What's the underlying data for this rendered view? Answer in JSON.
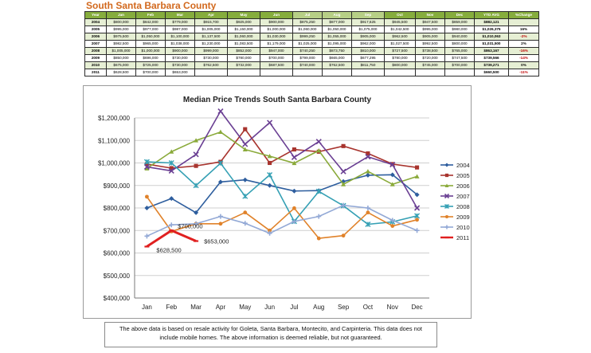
{
  "page": {
    "title": "South Santa Barbara County",
    "note_line1": "The above data is based on resale activity for Goleta, Santa Barbara, Montecito, and Carpinteria.  This data does not",
    "note_line2": "include mobile homes.  The above information is deemed reliable, but not guaranteed."
  },
  "table": {
    "headers": [
      "Year",
      "Jan",
      "Feb",
      "Mar",
      "Apr",
      "May",
      "Jun",
      "Jul",
      "Aug",
      "Sep",
      "Oct",
      "Nov",
      "Dec",
      "YTD AVG",
      "%Change"
    ],
    "highlight_headers": [
      7,
      8,
      9
    ],
    "rows": [
      [
        "2004",
        "$800,000",
        "$842,000",
        "$779,000",
        "$915,700",
        "$925,000",
        "$900,000",
        "$875,250",
        "$877,000",
        "$917,625",
        "$945,500",
        "$947,500",
        "$859,000",
        "$882,121",
        ""
      ],
      [
        "2005",
        "$995,000",
        "$977,000",
        "$987,000",
        "$1,005,000",
        "$1,150,000",
        "$1,000,000",
        "$1,060,000",
        "$1,050,000",
        "$1,075,000",
        "$1,042,500",
        "$995,000",
        "$980,000",
        "$1,026,375",
        "16%"
      ],
      [
        "2006",
        "$975,500",
        "$1,050,000",
        "$1,100,000",
        "$1,137,500",
        "$1,060,000",
        "$1,030,000",
        "$999,250",
        "$1,055,000",
        "$905,000",
        "$962,500",
        "$905,000",
        "$940,000",
        "$1,010,063",
        "-2%"
      ],
      [
        "2007",
        "$982,500",
        "$965,000",
        "$1,038,000",
        "$1,230,000",
        "$1,083,500",
        "$1,179,000",
        "$1,025,000",
        "$1,095,000",
        "$962,000",
        "$1,027,500",
        "$992,500",
        "$800,000",
        "$1,031,500",
        "2%"
      ],
      [
        "2008",
        "$1,005,000",
        "$1,000,000",
        "$900,000",
        "$999,000",
        "$852,000",
        "$947,000",
        "$740,250",
        "$873,750",
        "$810,000",
        "$727,500",
        "$738,500",
        "$765,000",
        "$863,167",
        "-16%"
      ],
      [
        "2009",
        "$850,000",
        "$696,000",
        "$730,000",
        "$730,000",
        "$780,000",
        "$700,000",
        "$799,000",
        "$665,000",
        "$677,295",
        "$780,000",
        "$720,000",
        "$747,500",
        "$739,566",
        "-14%"
      ],
      [
        "2010",
        "$675,000",
        "$725,000",
        "$730,000",
        "$762,500",
        "$732,000",
        "$687,500",
        "$740,000",
        "$762,500",
        "$811,750",
        "$800,000",
        "$745,000",
        "$700,000",
        "$739,271",
        "0%"
      ],
      [
        "2011",
        "$628,500",
        "$700,000",
        "$653,000",
        "",
        "",
        "",
        "",
        "",
        "",
        "",
        "",
        "",
        "$660,500",
        "-11%"
      ]
    ]
  },
  "chart_data": {
    "type": "line",
    "title": "Median Price Trends South Santa Barbara County",
    "categories": [
      "Jan",
      "Feb",
      "Mar",
      "Apr",
      "May",
      "Jun",
      "Jul",
      "Aug",
      "Sep",
      "Oct",
      "Nov",
      "Dec"
    ],
    "ylim": [
      400000,
      1200000
    ],
    "yticks": [
      "$400,000",
      "$500,000",
      "$600,000",
      "$700,000",
      "$800,000",
      "$900,000",
      "$1,000,000",
      "$1,100,000",
      "$1,200,000"
    ],
    "grid": true,
    "legend": "right",
    "series": [
      {
        "name": "2004",
        "color": "#2e5e9e",
        "marker": "diamond",
        "values": [
          800000,
          842000,
          779000,
          915700,
          925000,
          900000,
          875250,
          877000,
          917625,
          945500,
          947500,
          859000
        ]
      },
      {
        "name": "2005",
        "color": "#a8342e",
        "marker": "square",
        "values": [
          995000,
          977000,
          987000,
          1005000,
          1150000,
          1000000,
          1060000,
          1050000,
          1075000,
          1042500,
          995000,
          980000
        ]
      },
      {
        "name": "2006",
        "color": "#8aaa3a",
        "marker": "triangle",
        "values": [
          975500,
          1050000,
          1100000,
          1137500,
          1060000,
          1030000,
          999250,
          1055000,
          905000,
          962500,
          905000,
          940000
        ]
      },
      {
        "name": "2007",
        "color": "#6a3f93",
        "marker": "x",
        "values": [
          982500,
          965000,
          1038000,
          1230000,
          1083500,
          1179000,
          1025000,
          1095000,
          962000,
          1027500,
          992500,
          800000
        ]
      },
      {
        "name": "2008",
        "color": "#35a0b4",
        "marker": "star",
        "values": [
          1005000,
          1000000,
          900000,
          999000,
          852000,
          947000,
          740250,
          873750,
          810000,
          727500,
          738500,
          765000
        ]
      },
      {
        "name": "2009",
        "color": "#e0822a",
        "marker": "circle",
        "values": [
          850000,
          696000,
          730000,
          730000,
          780000,
          700000,
          799000,
          665000,
          677295,
          780000,
          720000,
          747500
        ]
      },
      {
        "name": "2010",
        "color": "#93a9d6",
        "marker": "plus",
        "values": [
          675000,
          725000,
          730000,
          762500,
          732000,
          687500,
          740000,
          762500,
          811750,
          800000,
          745000,
          700000
        ]
      },
      {
        "name": "2011",
        "color": "#e02020",
        "marker": "dash",
        "values": [
          628500,
          700000,
          653000,
          null,
          null,
          null,
          null,
          null,
          null,
          null,
          null,
          null
        ]
      }
    ],
    "annotations": [
      {
        "series": "2011",
        "category": "Jan",
        "text": "$628,500"
      },
      {
        "series": "2011",
        "category": "Feb",
        "text": "$700,000"
      },
      {
        "series": "2011",
        "category": "Mar",
        "text": "$653,000"
      }
    ]
  }
}
